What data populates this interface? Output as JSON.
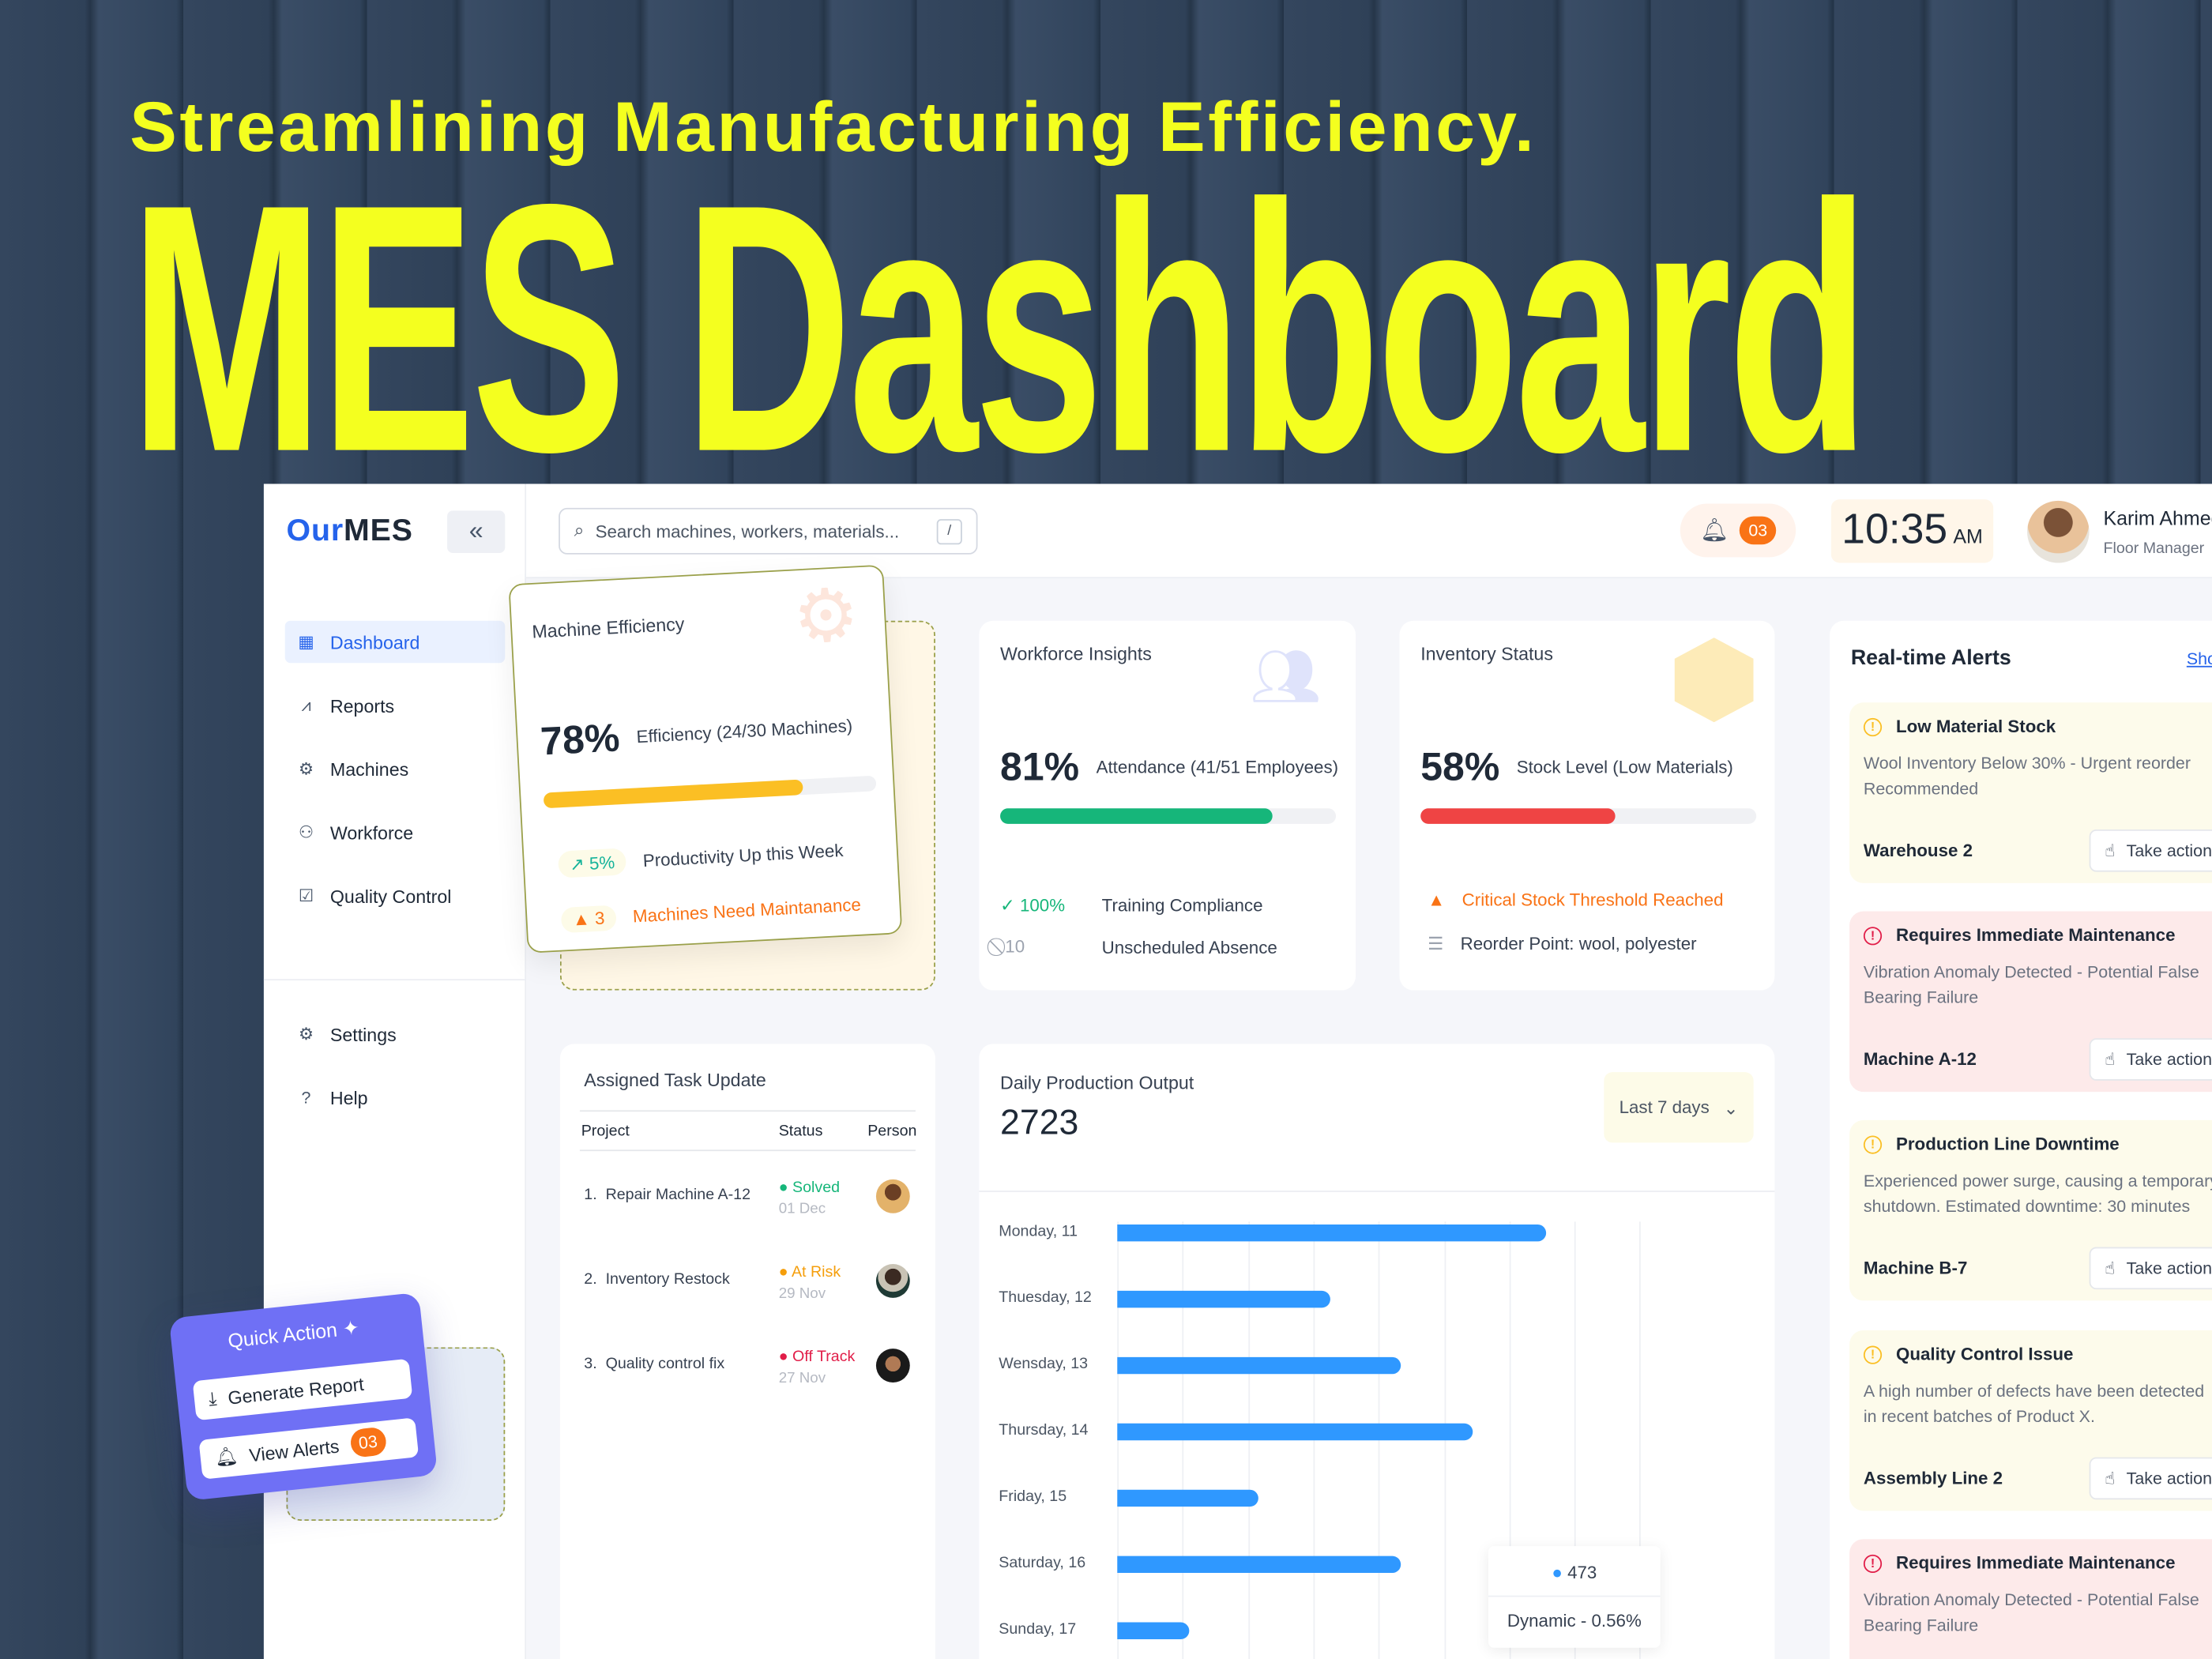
{
  "hero": {
    "subtitle": "Streamlining Manufacturing Efficiency.",
    "title": "MES Dashboard"
  },
  "app": {
    "logo_a": "Our",
    "logo_b": "MES",
    "collapse_icon": "«"
  },
  "search": {
    "placeholder": "Search machines, workers, materials...",
    "shortcut": "/"
  },
  "header": {
    "notifications": "03",
    "time": "10:35",
    "ampm": "AM",
    "user_name": "Karim Ahmed",
    "user_role": "Floor Manager"
  },
  "sidebar": {
    "items": [
      {
        "label": "Dashboard",
        "icon": "grid-icon",
        "active": true
      },
      {
        "label": "Reports",
        "icon": "chart-icon"
      },
      {
        "label": "Machines",
        "icon": "machine-icon"
      },
      {
        "label": "Workforce",
        "icon": "users-icon"
      },
      {
        "label": "Quality Control",
        "icon": "quality-icon"
      }
    ],
    "bottom": [
      {
        "label": "Settings",
        "icon": "gear-icon"
      },
      {
        "label": "Help",
        "icon": "help-icon"
      }
    ]
  },
  "machine": {
    "title": "Machine Efficiency",
    "value": "78%",
    "label": "Efficiency (24/30 Machines)",
    "progress": 78,
    "trend": "5%",
    "trend_label": "Productivity Up this Week",
    "maint_count": "3",
    "maint_label": "Machines Need Maintanance",
    "color": "#fbbf24"
  },
  "workforce": {
    "title": "Workforce Insights",
    "value": "81%",
    "label": "Attendance (41/51 Employees)",
    "progress": 81,
    "color": "#16b67a",
    "stat1": "100%",
    "stat1_label": "Training Compliance",
    "stat2": "10",
    "stat2_label": "Unscheduled Absence"
  },
  "inventory": {
    "title": "Inventory Status",
    "value": "58%",
    "label": "Stock Level (Low Materials)",
    "progress": 58,
    "color": "#ef4444",
    "warn": "Critical Stock Threshold Reached",
    "reorder": "Reorder Point: wool, polyester"
  },
  "alerts": {
    "title": "Real-time Alerts",
    "show": "Show all",
    "action": "Take action",
    "items": [
      {
        "title": "Low Material Stock",
        "d1": "Wool Inventory Below 30% - Urgent reorder",
        "d2": "Recommended",
        "loc": "Warehouse 2",
        "level": "warning"
      },
      {
        "title": "Requires Immediate Maintenance",
        "d1": "Vibration Anomaly Detected - Potential False",
        "d2": "Bearing Failure",
        "loc": "Machine A-12",
        "level": "critical"
      },
      {
        "title": "Production Line Downtime",
        "d1": "Experienced power surge, causing a temporary",
        "d2": "shutdown. Estimated downtime: 30 minutes",
        "loc": "Machine B-7",
        "level": "warning"
      },
      {
        "title": "Quality Control Issue",
        "d1": "A high number of defects have been detected",
        "d2": "in recent batches of Product X.",
        "loc": "Assembly Line 2",
        "level": "warning"
      },
      {
        "title": "Requires Immediate Maintenance",
        "d1": "Vibration Anomaly Detected - Potential False",
        "d2": "Bearing Failure",
        "loc": "",
        "level": "critical"
      }
    ]
  },
  "tasks": {
    "title": "Assigned Task Update",
    "columns": [
      "Project",
      "Status",
      "Person"
    ],
    "rows": [
      {
        "project": "1.  Repair Machine A-12",
        "status": "Solved",
        "date": "01 Dec",
        "color": "#16b67a"
      },
      {
        "project": "2.  Inventory Restock",
        "status": "At Risk",
        "date": "29 Nov",
        "color": "#f59e0b"
      },
      {
        "project": "3.  Quality control fix",
        "status": "Off Track",
        "date": "27 Nov",
        "color": "#e11d48"
      }
    ]
  },
  "quick": {
    "title": "Quick Action",
    "report": "Generate Report",
    "alerts": "View Alerts",
    "count": "03"
  },
  "chart_data": {
    "type": "bar",
    "orientation": "horizontal",
    "title": "Daily Production Output",
    "total": "2723",
    "range": "Last 7 days",
    "categories": [
      "Monday, 11",
      "Thuesday, 12",
      "Wensday, 13",
      "Thursday, 14",
      "Friday, 15",
      "Saturday, 16",
      "Sunday, 17"
    ],
    "values": [
      657,
      327,
      434,
      545,
      216,
      434,
      110
    ],
    "xlim": [
      0,
      800
    ],
    "grid": true,
    "color": "#2f98ff",
    "tooltip": {
      "value": "473",
      "dynamic": "Dynamic - 0.56%"
    }
  }
}
